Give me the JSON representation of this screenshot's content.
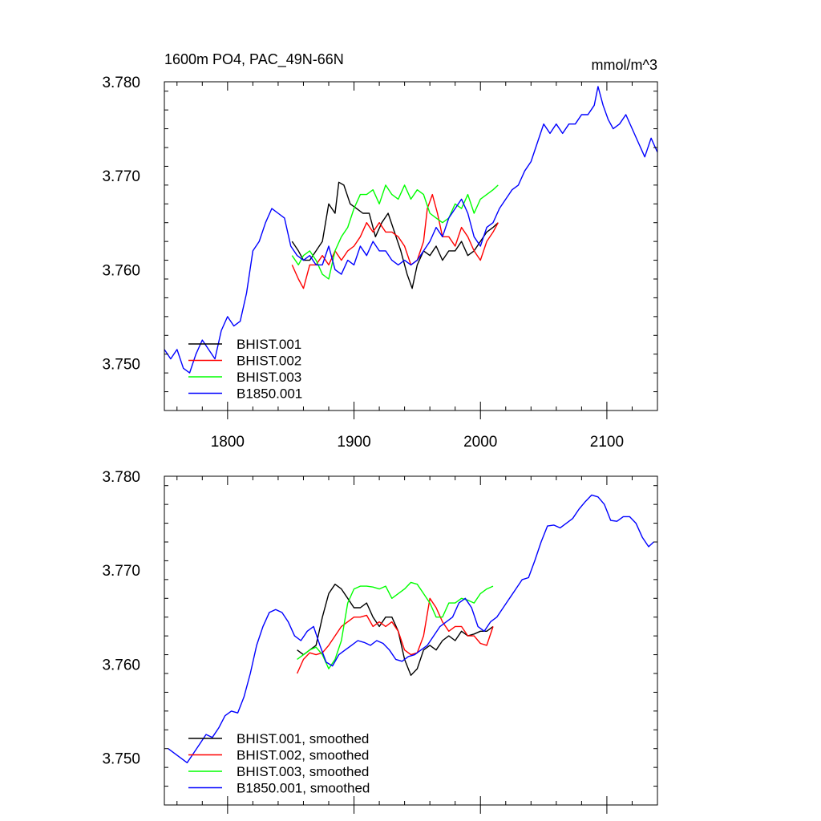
{
  "chart_data": [
    {
      "type": "line",
      "title": "1600m PO4, PAC_49N-66N",
      "units": "mmol/m^3",
      "xlim": [
        1750,
        2140
      ],
      "ylim": [
        3.745,
        3.78
      ],
      "xticks": [
        1800,
        1900,
        2000,
        2100
      ],
      "xtick_labels": [
        "1800",
        "1900",
        "2000",
        "2100"
      ],
      "yticks": [
        3.75,
        3.76,
        3.77,
        3.78
      ],
      "ytick_labels": [
        "3.750",
        "3.760",
        "3.770",
        "3.780"
      ],
      "legend_position": "bottom-left",
      "series": [
        {
          "name": "BHIST.001",
          "color": "#000000",
          "x": [
            1851,
            1856,
            1860,
            1865,
            1870,
            1875,
            1880,
            1885,
            1888,
            1892,
            1897,
            1902,
            1907,
            1912,
            1917,
            1922,
            1927,
            1932,
            1937,
            1942,
            1946,
            1950,
            1955,
            1960,
            1965,
            1970,
            1975,
            1980,
            1985,
            1990,
            1995,
            2000,
            2005,
            2010,
            2014
          ],
          "y": [
            3.763,
            3.762,
            3.761,
            3.761,
            3.762,
            3.763,
            3.767,
            3.766,
            3.7693,
            3.769,
            3.767,
            3.7665,
            3.766,
            3.766,
            3.7635,
            3.765,
            3.766,
            3.764,
            3.762,
            3.7595,
            3.758,
            3.7605,
            3.762,
            3.7615,
            3.7625,
            3.761,
            3.762,
            3.762,
            3.763,
            3.7615,
            3.762,
            3.763,
            3.764,
            3.7645,
            3.765
          ]
        },
        {
          "name": "BHIST.002",
          "color": "#ff0000",
          "x": [
            1851,
            1856,
            1860,
            1865,
            1870,
            1875,
            1880,
            1885,
            1890,
            1895,
            1900,
            1905,
            1910,
            1915,
            1920,
            1925,
            1930,
            1935,
            1940,
            1945,
            1950,
            1955,
            1958,
            1962,
            1966,
            1970,
            1975,
            1980,
            1985,
            1990,
            1995,
            2000,
            2005,
            2010,
            2014
          ],
          "y": [
            3.7605,
            3.759,
            3.758,
            3.7605,
            3.7605,
            3.7615,
            3.7605,
            3.762,
            3.761,
            3.762,
            3.7625,
            3.7635,
            3.765,
            3.764,
            3.765,
            3.764,
            3.764,
            3.7635,
            3.7625,
            3.7605,
            3.761,
            3.763,
            3.7665,
            3.768,
            3.766,
            3.7635,
            3.7635,
            3.7625,
            3.7645,
            3.7635,
            3.762,
            3.761,
            3.763,
            3.764,
            3.765
          ]
        },
        {
          "name": "BHIST.003",
          "color": "#00ff00",
          "x": [
            1851,
            1856,
            1860,
            1865,
            1870,
            1875,
            1880,
            1885,
            1890,
            1895,
            1900,
            1905,
            1910,
            1915,
            1920,
            1925,
            1930,
            1935,
            1940,
            1945,
            1950,
            1955,
            1960,
            1965,
            1970,
            1975,
            1980,
            1985,
            1990,
            1995,
            2000,
            2005,
            2010,
            2014
          ],
          "y": [
            3.7615,
            3.7605,
            3.7615,
            3.762,
            3.761,
            3.7595,
            3.759,
            3.762,
            3.7635,
            3.7645,
            3.7665,
            3.768,
            3.768,
            3.7685,
            3.767,
            3.769,
            3.768,
            3.7675,
            3.769,
            3.7675,
            3.7685,
            3.768,
            3.766,
            3.7655,
            3.765,
            3.7655,
            3.767,
            3.7665,
            3.768,
            3.766,
            3.7675,
            3.768,
            3.7685,
            3.769
          ]
        },
        {
          "name": "B1850.001",
          "color": "#0000ff",
          "x": [
            1750,
            1755,
            1760,
            1765,
            1770,
            1775,
            1780,
            1785,
            1790,
            1795,
            1800,
            1805,
            1810,
            1815,
            1820,
            1825,
            1830,
            1835,
            1840,
            1845,
            1850,
            1855,
            1860,
            1865,
            1870,
            1875,
            1880,
            1885,
            1890,
            1895,
            1900,
            1905,
            1910,
            1915,
            1920,
            1925,
            1930,
            1935,
            1940,
            1945,
            1950,
            1955,
            1960,
            1965,
            1970,
            1975,
            1980,
            1985,
            1990,
            1995,
            2000,
            2005,
            2010,
            2015,
            2020,
            2025,
            2030,
            2035,
            2040,
            2045,
            2050,
            2055,
            2060,
            2065,
            2070,
            2075,
            2080,
            2085,
            2090,
            2093,
            2097,
            2101,
            2105,
            2110,
            2115,
            2120,
            2125,
            2130,
            2135,
            2140
          ],
          "y": [
            3.7515,
            3.7505,
            3.7515,
            3.7495,
            3.749,
            3.751,
            3.7525,
            3.7515,
            3.7505,
            3.7535,
            3.755,
            3.754,
            3.7545,
            3.7575,
            3.762,
            3.763,
            3.765,
            3.7665,
            3.766,
            3.7655,
            3.7625,
            3.7615,
            3.761,
            3.7615,
            3.7605,
            3.7605,
            3.7625,
            3.76,
            3.7595,
            3.761,
            3.7605,
            3.7625,
            3.7615,
            3.763,
            3.762,
            3.762,
            3.761,
            3.7605,
            3.761,
            3.7605,
            3.761,
            3.762,
            3.763,
            3.7645,
            3.7635,
            3.7655,
            3.7665,
            3.7675,
            3.766,
            3.7635,
            3.7625,
            3.7645,
            3.765,
            3.7665,
            3.7675,
            3.7685,
            3.769,
            3.7705,
            3.7715,
            3.7735,
            3.7755,
            3.7745,
            3.7755,
            3.7745,
            3.7755,
            3.7755,
            3.7765,
            3.7765,
            3.7775,
            3.7795,
            3.7775,
            3.776,
            3.775,
            3.7755,
            3.7765,
            3.775,
            3.7735,
            3.772,
            3.774,
            3.7725
          ]
        }
      ]
    },
    {
      "type": "line",
      "xlim": [
        1750,
        2140
      ],
      "ylim": [
        3.745,
        3.78
      ],
      "xticks": [
        1800,
        1900,
        2000,
        2100
      ],
      "yticks": [
        3.75,
        3.76,
        3.77,
        3.78
      ],
      "ytick_labels": [
        "3.750",
        "3.760",
        "3.770",
        "3.780"
      ],
      "legend_position": "bottom-left",
      "series": [
        {
          "name": "BHIST.001, smoothed",
          "color": "#000000",
          "x": [
            1855,
            1860,
            1865,
            1870,
            1875,
            1880,
            1885,
            1890,
            1895,
            1900,
            1905,
            1910,
            1915,
            1920,
            1925,
            1930,
            1935,
            1940,
            1945,
            1950,
            1955,
            1960,
            1965,
            1970,
            1975,
            1980,
            1985,
            1990,
            1995,
            2000,
            2005,
            2010
          ],
          "y": [
            3.7615,
            3.761,
            3.7615,
            3.762,
            3.765,
            3.7675,
            3.7685,
            3.768,
            3.767,
            3.766,
            3.766,
            3.7665,
            3.765,
            3.764,
            3.765,
            3.765,
            3.7635,
            3.7605,
            3.7588,
            3.7595,
            3.7615,
            3.762,
            3.7615,
            3.7625,
            3.763,
            3.7625,
            3.7635,
            3.763,
            3.7632,
            3.7635,
            3.7635,
            3.764
          ]
        },
        {
          "name": "BHIST.002, smoothed",
          "color": "#ff0000",
          "x": [
            1855,
            1860,
            1865,
            1870,
            1875,
            1880,
            1885,
            1890,
            1895,
            1900,
            1905,
            1910,
            1915,
            1920,
            1925,
            1930,
            1935,
            1940,
            1945,
            1950,
            1955,
            1960,
            1965,
            1970,
            1975,
            1980,
            1985,
            1990,
            1995,
            2000,
            2005,
            2010
          ],
          "y": [
            3.759,
            3.7605,
            3.7612,
            3.761,
            3.7612,
            3.762,
            3.763,
            3.764,
            3.7645,
            3.765,
            3.765,
            3.7652,
            3.764,
            3.7645,
            3.764,
            3.7645,
            3.7635,
            3.7615,
            3.761,
            3.7612,
            3.763,
            3.767,
            3.766,
            3.7645,
            3.7635,
            3.764,
            3.764,
            3.763,
            3.763,
            3.7622,
            3.762,
            3.764
          ]
        },
        {
          "name": "BHIST.003, smoothed",
          "color": "#00ff00",
          "x": [
            1855,
            1860,
            1865,
            1870,
            1875,
            1880,
            1885,
            1890,
            1895,
            1900,
            1905,
            1910,
            1915,
            1920,
            1925,
            1930,
            1935,
            1940,
            1945,
            1950,
            1955,
            1960,
            1965,
            1970,
            1975,
            1980,
            1985,
            1990,
            1995,
            2000,
            2005,
            2010
          ],
          "y": [
            3.7605,
            3.761,
            3.7615,
            3.7618,
            3.761,
            3.7595,
            3.7605,
            3.7625,
            3.7665,
            3.768,
            3.7683,
            3.7683,
            3.7682,
            3.768,
            3.7683,
            3.767,
            3.7675,
            3.768,
            3.7687,
            3.7685,
            3.7675,
            3.7665,
            3.765,
            3.765,
            3.7665,
            3.7665,
            3.767,
            3.7668,
            3.7665,
            3.7675,
            3.768,
            3.7683
          ]
        },
        {
          "name": "B1850.001, smoothed",
          "color": "#0000ff",
          "x": [
            1753,
            1758,
            1763,
            1768,
            1773,
            1778,
            1783,
            1788,
            1793,
            1798,
            1803,
            1808,
            1813,
            1818,
            1823,
            1828,
            1833,
            1838,
            1843,
            1848,
            1853,
            1858,
            1863,
            1868,
            1873,
            1878,
            1883,
            1888,
            1893,
            1898,
            1903,
            1908,
            1913,
            1918,
            1923,
            1928,
            1933,
            1938,
            1943,
            1948,
            1953,
            1958,
            1963,
            1968,
            1973,
            1978,
            1983,
            1988,
            1993,
            1998,
            2003,
            2008,
            2013,
            2018,
            2023,
            2028,
            2033,
            2038,
            2043,
            2048,
            2053,
            2058,
            2063,
            2068,
            2073,
            2078,
            2083,
            2088,
            2093,
            2098,
            2103,
            2108,
            2113,
            2118,
            2123,
            2128,
            2133,
            2137
          ],
          "y": [
            3.751,
            3.7505,
            3.75,
            3.7495,
            3.7505,
            3.7515,
            3.7525,
            3.7522,
            3.7532,
            3.7545,
            3.755,
            3.7548,
            3.7565,
            3.759,
            3.762,
            3.764,
            3.7655,
            3.7658,
            3.7655,
            3.7645,
            3.763,
            3.7625,
            3.7635,
            3.764,
            3.762,
            3.7602,
            3.7598,
            3.761,
            3.7615,
            3.762,
            3.7625,
            3.7623,
            3.762,
            3.7625,
            3.7622,
            3.7615,
            3.7605,
            3.7603,
            3.7608,
            3.761,
            3.7615,
            3.762,
            3.763,
            3.764,
            3.7645,
            3.765,
            3.7665,
            3.767,
            3.766,
            3.764,
            3.7635,
            3.7645,
            3.765,
            3.766,
            3.767,
            3.768,
            3.769,
            3.7692,
            3.771,
            3.773,
            3.7747,
            3.7748,
            3.7745,
            3.775,
            3.7755,
            3.7765,
            3.7773,
            3.778,
            3.7778,
            3.777,
            3.7753,
            3.7752,
            3.7757,
            3.7757,
            3.775,
            3.7735,
            3.7725,
            3.773
          ]
        }
      ]
    }
  ]
}
